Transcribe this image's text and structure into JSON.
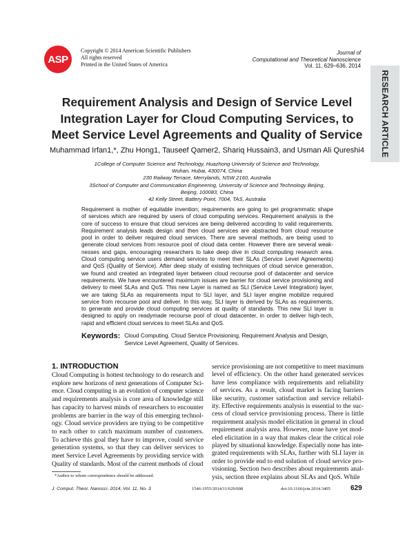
{
  "header": {
    "logo_text": "ASP",
    "logo_color": "#e5202a",
    "copyright_lines": [
      "Copyright © 2014 American Scientific Publishers",
      "All rights reserved",
      "Printed in the United States of America"
    ],
    "journal_lines": [
      "Journal of",
      "Computational and Theoretical Nanoscience"
    ],
    "volume": "Vol. 11, 629–636, 2014",
    "article_type": "RESEARCH ARTICLE"
  },
  "title_lines": [
    "Requirement Analysis and Design of Service Level",
    "Integration Layer for Cloud Computing Services, to",
    "Meet Service Level Agreements and Quality of Service"
  ],
  "authors": "Muhammad Irfan1,*, Zhu Hong1, Tauseef Qamer2, Shariq Hussain3, and Usman Ali Qureshi4",
  "affiliations": [
    "1College of Computer Science and Technology, Huazhong University of Science and Technology,",
    "Wuhan, Hubai, 430074, China",
    "230 Railway Terrace, Merrylands, NSW 2160, Australia",
    "3School of Computer and Communication Engineering, University of Science and Technology Beijing,",
    "Beijing, 100083, China",
    "42 Kelly Street, Battery Point, 7004, TAS, Australia"
  ],
  "abstract_lines": [
    "Requirement is mother of equitable invention; requirements are going to get programmatic shape",
    "of services which are required by users of cloud computing services. Requirement analysis is the",
    "core of success to ensure that cloud services are being delivered according to valid requirements.",
    "Requirement analysis leads design and then cloud services are abstracted from cloud resource",
    "pool in order to deliver required cloud services. There are several methods, are being used to",
    "generate cloud services from resource pool of cloud data center. However there are several weak-",
    "nesses and gaps, encouraging researchers to take deep dive in cloud computing research area.",
    "Cloud computing service users demand services to meet their SLAs (Service Level Agreements)",
    "and QoS (Quality of Service). After deep study of existing techniques of cloud service generation,",
    "we found and created an integrated layer between cloud recourse pool of datacenter and service",
    "requirements. We have encountered maximum issues are barrier for cloud service provisioning and",
    "delivery to meet SLAs and QoS. This new Layer is named as SLI (Service Level Integration) layer,",
    "we are taking SLAs as requirements input to SLI layer, and SLI layer engine mobilize required",
    "service from recourse pool and deliver. In this way, SLI layer is derived by SLAs as requirements,",
    "to generate and provide cloud computing services at quality of standards. This new SLI layer is",
    "designed to apply on readymade recourse pool of cloud datacenter, in order to deliver high-tech,",
    "rapid and efficient cloud services to meet SLAs and QoS."
  ],
  "keywords": {
    "label": "Keywords:",
    "text": "Cloud Computing, Cloud Service Provisioning, Requirement Analysis and Design, Service Level Agreement, Quality of Services."
  },
  "section_heading": "1. INTRODUCTION",
  "left_column_lines": [
    "Cloud Computing is hottest technology to do research and",
    "explore new horizons of next generations of Computer Sci-",
    "ence. Cloud computing is an evolution of computer science",
    "and requirements analysis is core area of knowledge still",
    "has capacity to harvest minds of researchers to encounter",
    "problems are barrier in the way of this emerging technol-",
    "ogy. Cloud service providers are trying to be competitive",
    "to each other to catch maximum number of customers.",
    "To achieve this goal they have to improve, could service",
    "generation systems, so that they can deliver services to",
    "meet Service Level Agreements by providing service with",
    "Quality of standards. Most of the current methods of cloud"
  ],
  "right_column_lines": [
    "service provisioning are not competitive to meet maximum",
    "level of efficiency. On the other hand generated services",
    "have less compliance with requirements and reliability",
    "of services. As a result, cloud market is facing barriers",
    "like security, customer satisfaction and service reliabil-",
    "ity. Effective requirements analysis is essential to the suc-",
    "cess of cloud service provisioning process. There is little",
    "requirement analysis model elicitation in general in cloud",
    "requirement analysis area. However, none have yet mod-",
    "eled elicitation in a way that makes clear the critical role",
    "played by situational knowledge. Especially none has inte-",
    "grated requirements with SLAs, further with SLI layer in",
    "order to provide end to end solution of cloud service pro-",
    "visioning. Section two describes about requirements anal-",
    "ysis, section three explains about SLAs and QoS. While"
  ],
  "footnote": "*Author to whom correspondence should be addressed.",
  "footer": {
    "journal_ref": "J. Comput. Theor. Nanosci. 2014, Vol. 11, No. 3",
    "issn": "1546-1955/2014/11/629/008",
    "doi": "doi:10.1166/jctn.2014.3405",
    "page": "629"
  }
}
